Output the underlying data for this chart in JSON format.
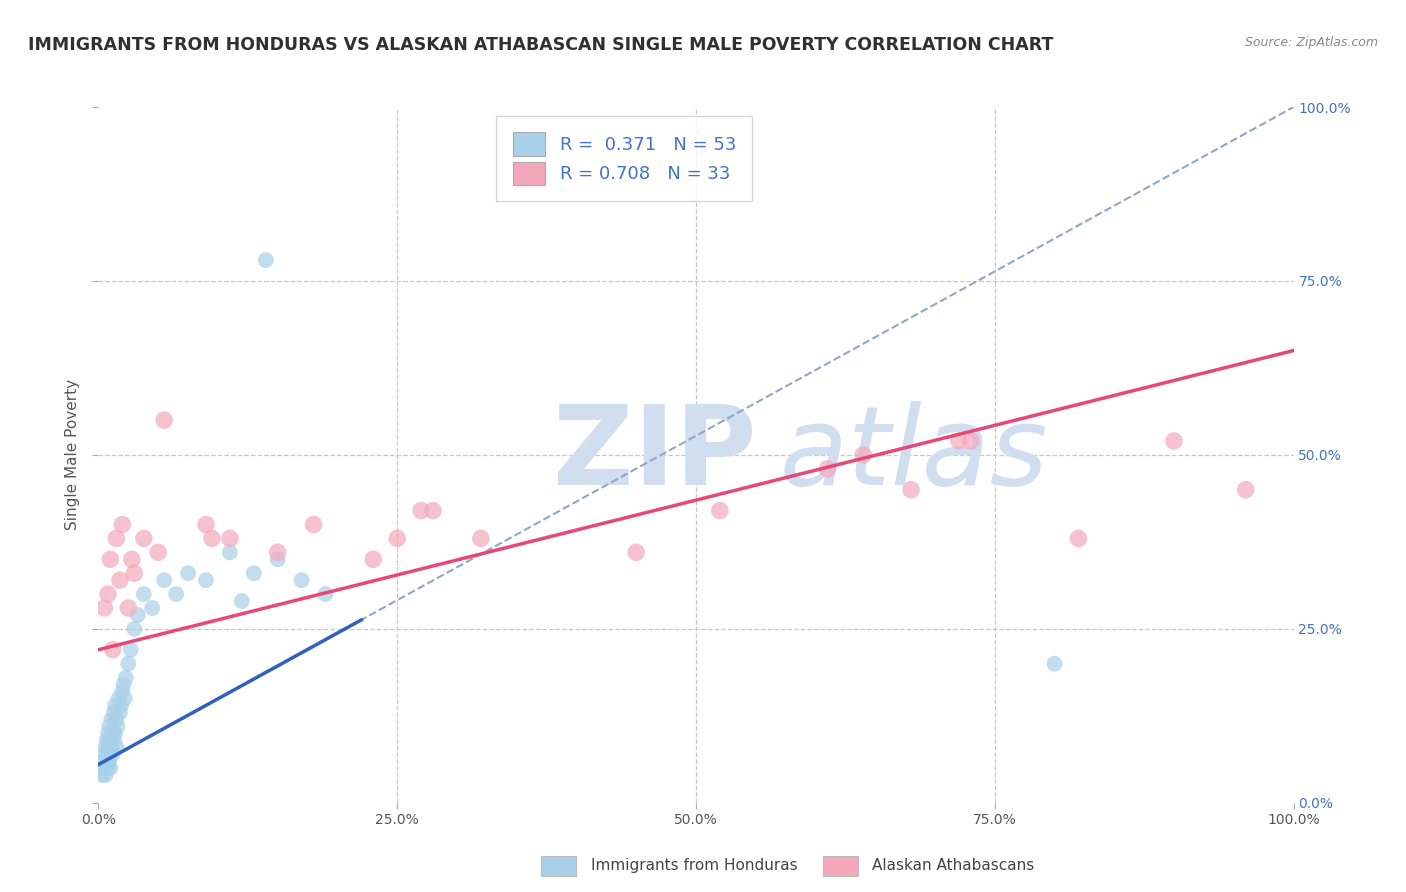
{
  "title": "IMMIGRANTS FROM HONDURAS VS ALASKAN ATHABASCAN SINGLE MALE POVERTY CORRELATION CHART",
  "source": "Source: ZipAtlas.com",
  "ylabel": "Single Male Poverty",
  "xlim": [
    0,
    1
  ],
  "ylim": [
    0,
    1
  ],
  "xticks": [
    0.0,
    0.25,
    0.5,
    0.75,
    1.0
  ],
  "yticks": [
    0.0,
    0.25,
    0.5,
    0.75,
    1.0
  ],
  "xtick_labels": [
    "0.0%",
    "25.0%",
    "50.0%",
    "75.0%",
    "100.0%"
  ],
  "ytick_labels": [
    "0.0%",
    "25.0%",
    "50.0%",
    "75.0%",
    "100.0%"
  ],
  "legend_label1": "Immigrants from Honduras",
  "legend_label2": "Alaskan Athabascans",
  "R1": "0.371",
  "N1": "53",
  "R2": "0.708",
  "N2": "33",
  "color_blue": "#A8D0E8",
  "color_pink": "#F4A8BC",
  "line_color_blue_solid": "#3060C0",
  "line_color_blue_dash": "#90A8C8",
  "line_color_pink": "#E84878",
  "watermark_zip": "ZIP",
  "watermark_atlas": "atlas",
  "watermark_color": "#D0DEF0",
  "background_color": "#FFFFFF",
  "grid_color": "#C8C8C8",
  "title_color": "#303030",
  "source_color": "#888888",
  "right_axis_color": "#4472C4",
  "blue_scatter_x": [
    0.003,
    0.004,
    0.005,
    0.005,
    0.006,
    0.006,
    0.007,
    0.007,
    0.008,
    0.008,
    0.008,
    0.009,
    0.009,
    0.009,
    0.01,
    0.01,
    0.01,
    0.011,
    0.011,
    0.012,
    0.012,
    0.013,
    0.013,
    0.014,
    0.014,
    0.015,
    0.015,
    0.016,
    0.017,
    0.018,
    0.019,
    0.02,
    0.021,
    0.022,
    0.023,
    0.025,
    0.027,
    0.03,
    0.033,
    0.038,
    0.045,
    0.055,
    0.065,
    0.075,
    0.09,
    0.11,
    0.13,
    0.15,
    0.17,
    0.19,
    0.14,
    0.12,
    0.8
  ],
  "blue_scatter_y": [
    0.04,
    0.06,
    0.05,
    0.07,
    0.04,
    0.08,
    0.06,
    0.09,
    0.05,
    0.07,
    0.1,
    0.06,
    0.08,
    0.11,
    0.05,
    0.07,
    0.09,
    0.08,
    0.12,
    0.07,
    0.1,
    0.09,
    0.13,
    0.1,
    0.14,
    0.08,
    0.12,
    0.11,
    0.15,
    0.13,
    0.14,
    0.16,
    0.17,
    0.15,
    0.18,
    0.2,
    0.22,
    0.25,
    0.27,
    0.3,
    0.28,
    0.32,
    0.3,
    0.33,
    0.32,
    0.36,
    0.33,
    0.35,
    0.32,
    0.3,
    0.78,
    0.29,
    0.2
  ],
  "pink_scatter_x": [
    0.005,
    0.008,
    0.01,
    0.012,
    0.015,
    0.018,
    0.02,
    0.025,
    0.028,
    0.03,
    0.038,
    0.05,
    0.055,
    0.09,
    0.095,
    0.11,
    0.15,
    0.18,
    0.23,
    0.25,
    0.27,
    0.28,
    0.32,
    0.45,
    0.52,
    0.61,
    0.64,
    0.68,
    0.72,
    0.73,
    0.82,
    0.9,
    0.96
  ],
  "pink_scatter_y": [
    0.28,
    0.3,
    0.35,
    0.22,
    0.38,
    0.32,
    0.4,
    0.28,
    0.35,
    0.33,
    0.38,
    0.36,
    0.55,
    0.4,
    0.38,
    0.38,
    0.36,
    0.4,
    0.35,
    0.38,
    0.42,
    0.42,
    0.38,
    0.36,
    0.42,
    0.48,
    0.5,
    0.45,
    0.52,
    0.52,
    0.38,
    0.52,
    0.45
  ],
  "blue_line_x0": 0.0,
  "blue_line_y0": 0.055,
  "blue_line_x1": 1.0,
  "blue_line_y1": 1.0,
  "pink_line_x0": 0.0,
  "pink_line_y0": 0.22,
  "pink_line_x1": 1.0,
  "pink_line_y1": 0.65
}
